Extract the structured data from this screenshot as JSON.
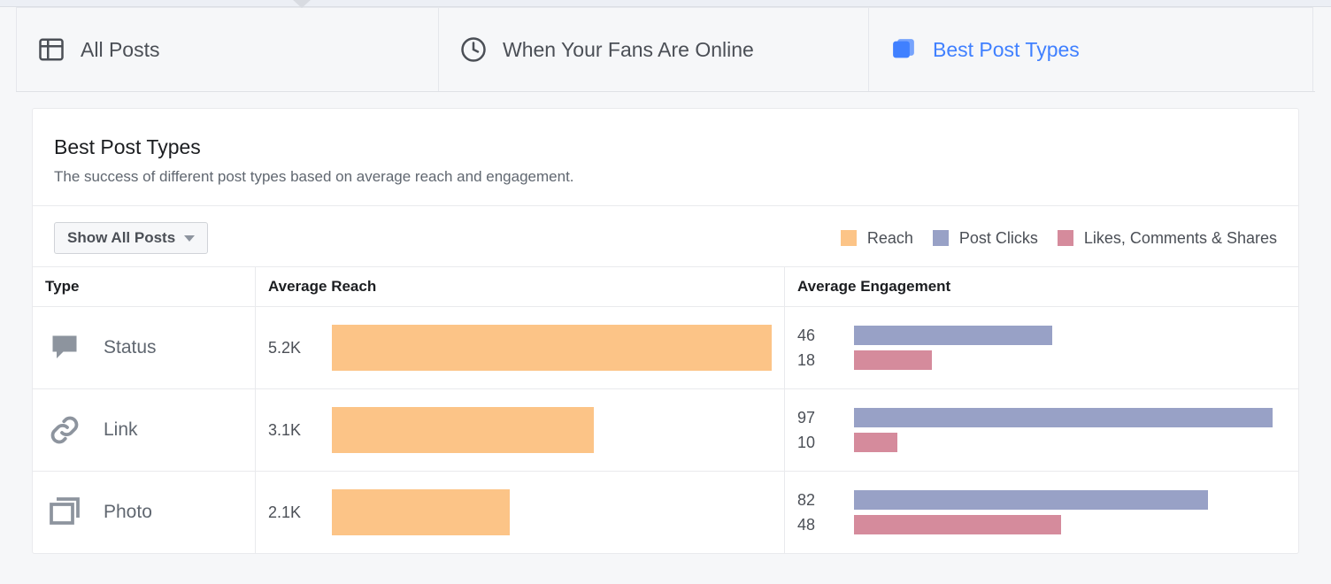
{
  "tabs": [
    {
      "id": "all-posts",
      "label": "All Posts",
      "active": false
    },
    {
      "id": "when-online",
      "label": "When Your Fans Are Online",
      "active": false
    },
    {
      "id": "best-post-types",
      "label": "Best Post Types",
      "active": true
    }
  ],
  "panel": {
    "title": "Best Post Types",
    "subtitle": "The success of different post types based on average reach and engagement."
  },
  "controls": {
    "dropdown_label": "Show All Posts"
  },
  "legend": {
    "items": [
      {
        "key": "reach",
        "label": "Reach",
        "color": "#fcc487"
      },
      {
        "key": "clicks",
        "label": "Post Clicks",
        "color": "#98a1c6"
      },
      {
        "key": "likes",
        "label": "Likes, Comments & Shares",
        "color": "#d58b9c"
      }
    ]
  },
  "columns": {
    "type": "Type",
    "reach": "Average Reach",
    "engagement": "Average Engagement"
  },
  "colors": {
    "reach_bar": "#fcc487",
    "clicks_bar": "#98a1c6",
    "likes_bar": "#d58b9c",
    "text_muted": "#606770",
    "border": "#e9eaed",
    "accent": "#4080ff",
    "icon_gray": "#8d949e",
    "background": "#f6f7f9"
  },
  "scales": {
    "reach_max": 5200,
    "engagement_max": 100
  },
  "rows": [
    {
      "type_key": "status",
      "type_label": "Status",
      "reach_value": 5200,
      "reach_label": "5.2K",
      "clicks_value": 46,
      "clicks_label": "46",
      "likes_value": 18,
      "likes_label": "18"
    },
    {
      "type_key": "link",
      "type_label": "Link",
      "reach_value": 3100,
      "reach_label": "3.1K",
      "clicks_value": 97,
      "clicks_label": "97",
      "likes_value": 10,
      "likes_label": "10"
    },
    {
      "type_key": "photo",
      "type_label": "Photo",
      "reach_value": 2100,
      "reach_label": "2.1K",
      "clicks_value": 82,
      "clicks_label": "82",
      "likes_value": 48,
      "likes_label": "48"
    }
  ]
}
